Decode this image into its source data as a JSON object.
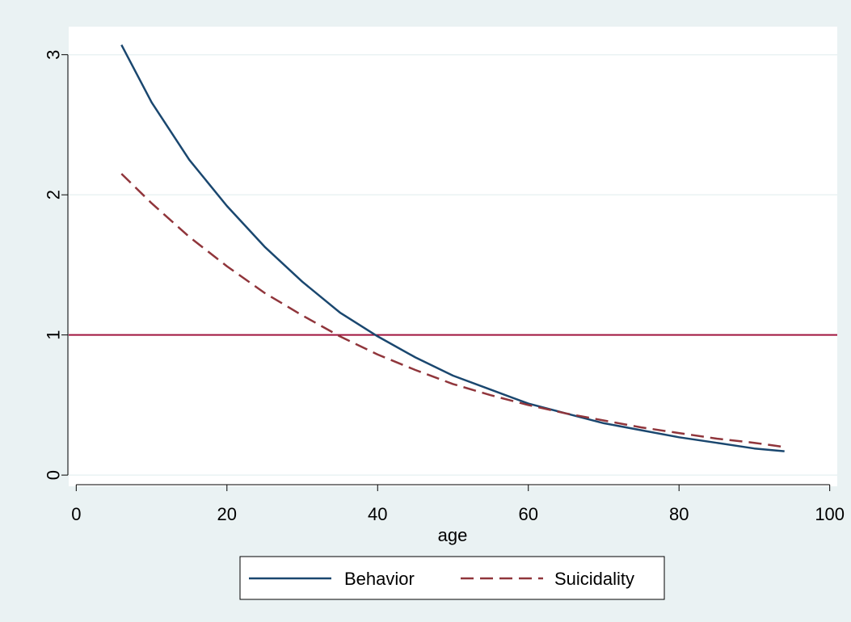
{
  "chart_data": {
    "type": "line",
    "title": "",
    "xlabel": "age",
    "ylabel": "",
    "xlim": [
      -1,
      101
    ],
    "ylim": [
      -0.08,
      3.2
    ],
    "x_ticks": [
      0,
      20,
      40,
      60,
      80,
      100
    ],
    "x_tick_labels": [
      "0",
      "20",
      "40",
      "60",
      "80",
      "100"
    ],
    "y_ticks": [
      0,
      1,
      2,
      3
    ],
    "y_tick_labels": [
      "0",
      "1",
      "2",
      "3"
    ],
    "grid": "horizontal",
    "legend_position": "bottom",
    "reference_line": {
      "y": 1,
      "color": "#a0153e"
    },
    "x": [
      6,
      10,
      15,
      20,
      25,
      30,
      35,
      40,
      45,
      50,
      55,
      60,
      65,
      70,
      75,
      80,
      85,
      90,
      94
    ],
    "series": [
      {
        "name": "Behavior",
        "color": "#1a476f",
        "dash": "solid",
        "values": [
          3.07,
          2.66,
          2.25,
          1.92,
          1.63,
          1.38,
          1.16,
          0.99,
          0.84,
          0.71,
          0.61,
          0.51,
          0.44,
          0.37,
          0.32,
          0.27,
          0.23,
          0.19,
          0.17
        ]
      },
      {
        "name": "Suicidality",
        "color": "#90353b",
        "dash": "dashed",
        "values": [
          2.15,
          1.94,
          1.7,
          1.49,
          1.3,
          1.14,
          0.99,
          0.86,
          0.75,
          0.65,
          0.57,
          0.5,
          0.44,
          0.39,
          0.34,
          0.3,
          0.26,
          0.23,
          0.2
        ]
      }
    ]
  }
}
